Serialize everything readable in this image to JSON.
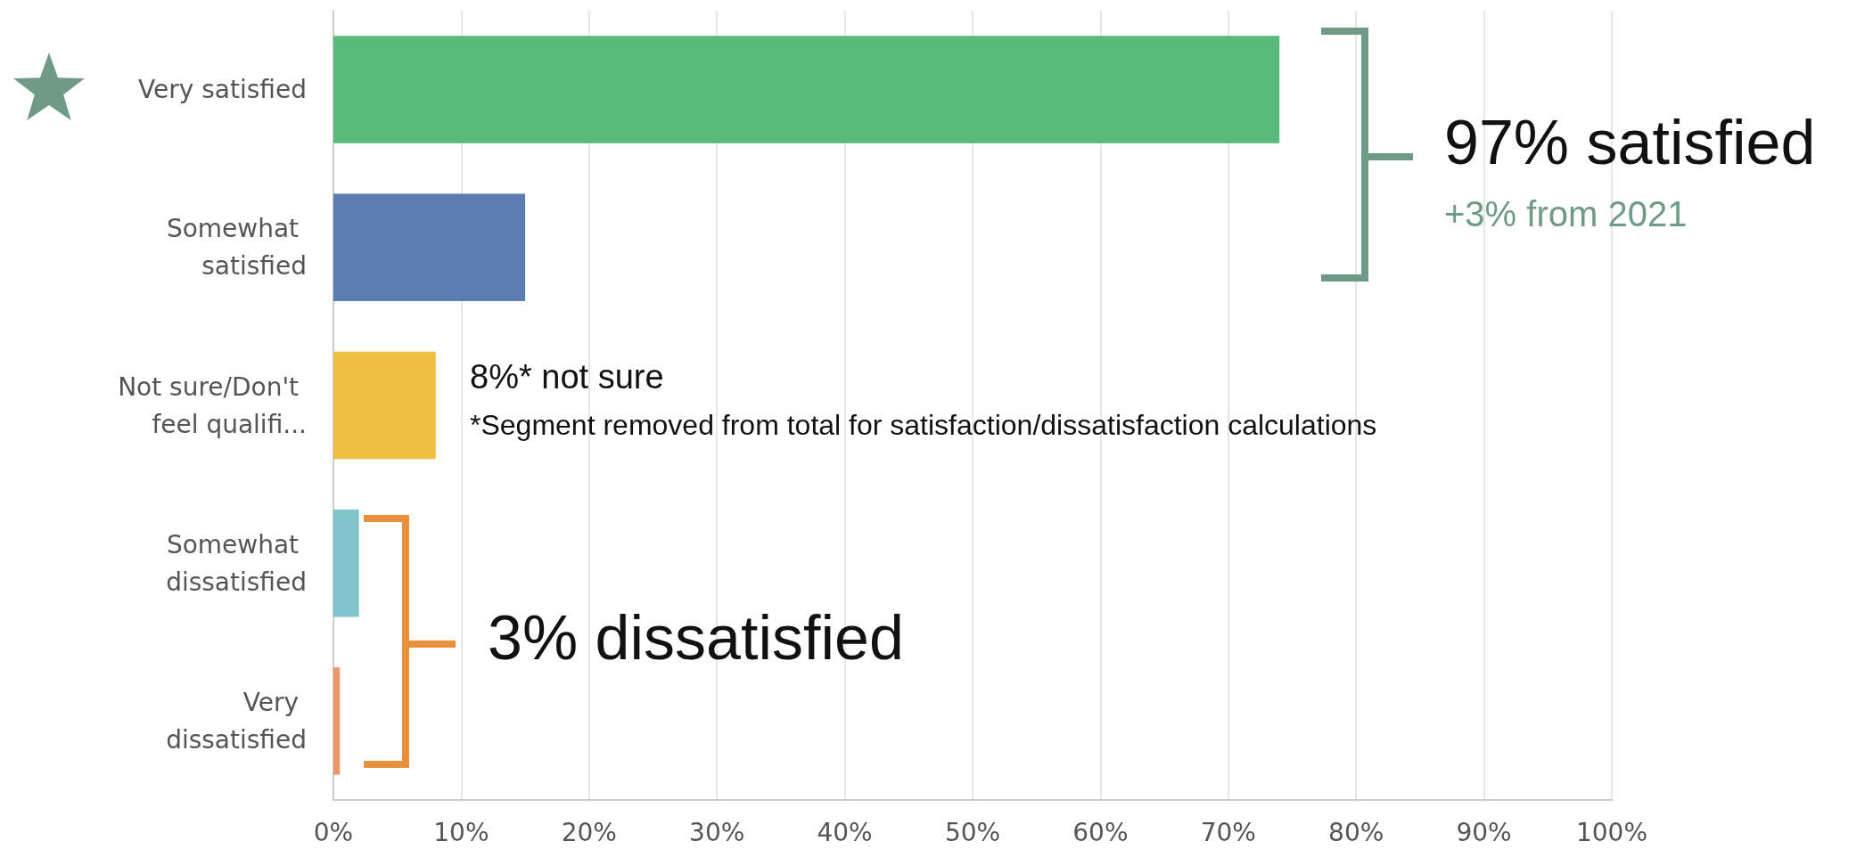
{
  "chart_data": {
    "type": "bar",
    "orientation": "horizontal",
    "categories": [
      "Very satisfied",
      "Somewhat satisfied",
      "Not sure/Don't feel qualifi...",
      "Somewhat dissatisfied",
      "Very dissatisfied"
    ],
    "values": [
      74,
      15,
      8,
      2,
      0.5
    ],
    "colors": [
      "#58bb77",
      "#5b7db1",
      "#efbf44",
      "#7ec4ca",
      "#ea9868"
    ],
    "xlim": [
      0,
      100
    ],
    "xticks": [
      {
        "value": 0,
        "label": "0%"
      },
      {
        "value": 10,
        "label": "10%"
      },
      {
        "value": 20,
        "label": "20%"
      },
      {
        "value": 30,
        "label": "30%"
      },
      {
        "value": 40,
        "label": "40%"
      },
      {
        "value": 50,
        "label": "50%"
      },
      {
        "value": 60,
        "label": "60%"
      },
      {
        "value": 70,
        "label": "70%"
      },
      {
        "value": 80,
        "label": "80%"
      },
      {
        "value": 90,
        "label": "90%"
      },
      {
        "value": 100,
        "label": "100%"
      }
    ],
    "grid": "x",
    "annotations": [
      "97% satisfied",
      "+3% from 2021",
      "8%* not sure",
      "*Segment removed from total for satisfaction/dissatisfaction calculations",
      "3% dissatisfied"
    ]
  }
}
